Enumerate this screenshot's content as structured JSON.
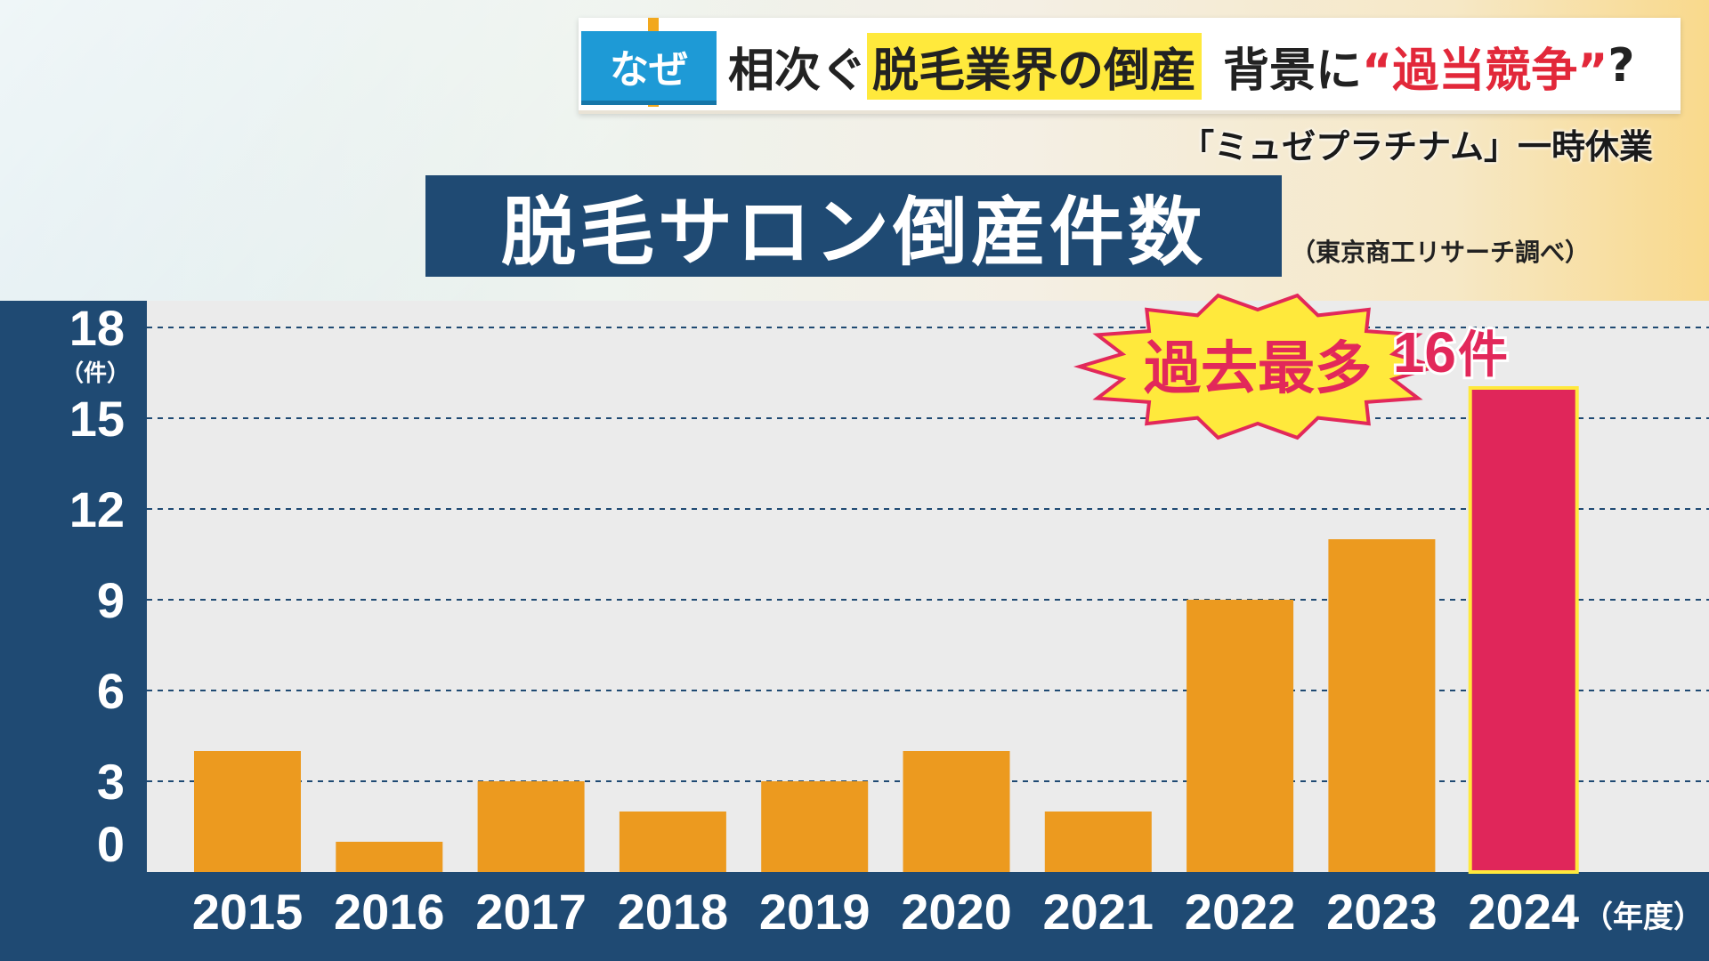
{
  "banner": {
    "tag": "なぜ",
    "headline_part1": "相次ぐ",
    "headline_highlight": "脱毛業界の倒産",
    "headline_part2": "背景に",
    "headline_quote": "“過当競争”",
    "headline_end": "?",
    "subheadline": "「ミュゼプラチナム」一時休業"
  },
  "chart_title": "脱毛サロン倒産件数",
  "source": "（東京商工リサーチ調べ）",
  "callout": {
    "burst_text": "過去最多",
    "value_number": "16",
    "value_unit": "件"
  },
  "colors": {
    "navy": "#1f4a73",
    "bar": "#ec9a1f",
    "highlight_bar": "#e0265a",
    "highlight_text": "#e2285a",
    "burst_fill": "#ffe93c"
  },
  "chart_data": {
    "type": "bar",
    "categories": [
      "2015",
      "2016",
      "2017",
      "2018",
      "2019",
      "2020",
      "2021",
      "2022",
      "2023",
      "2024"
    ],
    "values": [
      4,
      1,
      3,
      2,
      3,
      4,
      2,
      9,
      11,
      16
    ],
    "highlight_index": 9,
    "y_ticks": [
      "0",
      "3",
      "6",
      "9",
      "12",
      "15",
      "18"
    ],
    "y_unit": "（件）",
    "x_unit": "（年度）",
    "ylim": [
      0,
      18
    ],
    "grid": "dashed horizontal"
  }
}
